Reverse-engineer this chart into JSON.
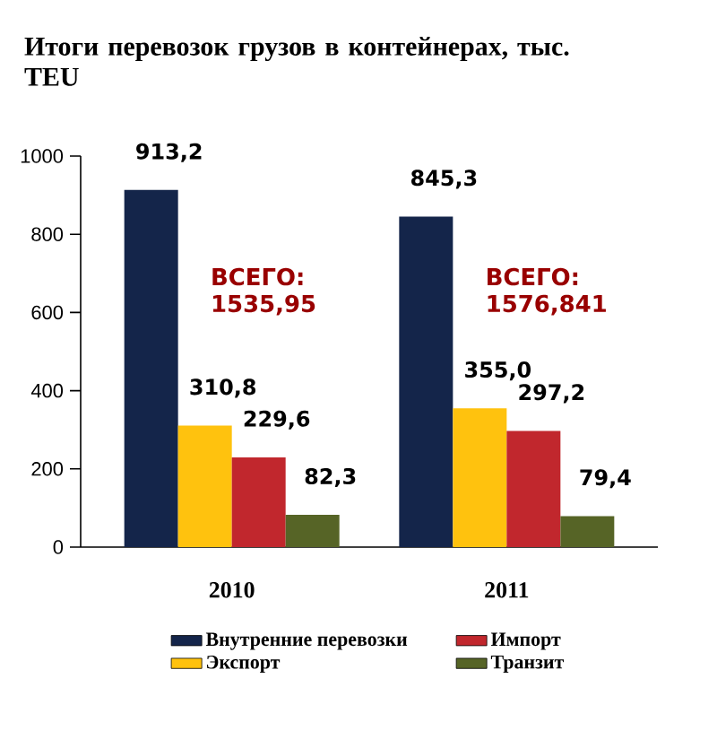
{
  "chart_data": {
    "type": "bar",
    "title": "Итоги перевозок грузов в контейнерах, тыс. TEU",
    "categories": [
      "2010",
      "2011"
    ],
    "series": [
      {
        "name": "Внутренние перевозки",
        "color": "#14254a",
        "values": [
          913.2,
          845.3
        ],
        "value_labels": [
          "913,2",
          "845,3"
        ]
      },
      {
        "name": "Экспорт",
        "color": "#ffc20e",
        "values": [
          310.8,
          355.0
        ],
        "value_labels": [
          "310,8",
          "355,0"
        ]
      },
      {
        "name": "Импорт",
        "color": "#c1272d",
        "values": [
          229.6,
          297.2
        ],
        "value_labels": [
          "229,6",
          "297,2"
        ]
      },
      {
        "name": "Транзит",
        "color": "#566426",
        "values": [
          82.3,
          79.4
        ],
        "value_labels": [
          "82,3",
          "79,4"
        ]
      }
    ],
    "annotations": [
      "ВСЕГО: 1535,95",
      "ВСЕГО: 1576,841"
    ],
    "ylim": [
      0,
      1000
    ],
    "yticks": [
      0,
      200,
      400,
      600,
      800,
      1000
    ],
    "grid": false,
    "legend": "bottom"
  }
}
